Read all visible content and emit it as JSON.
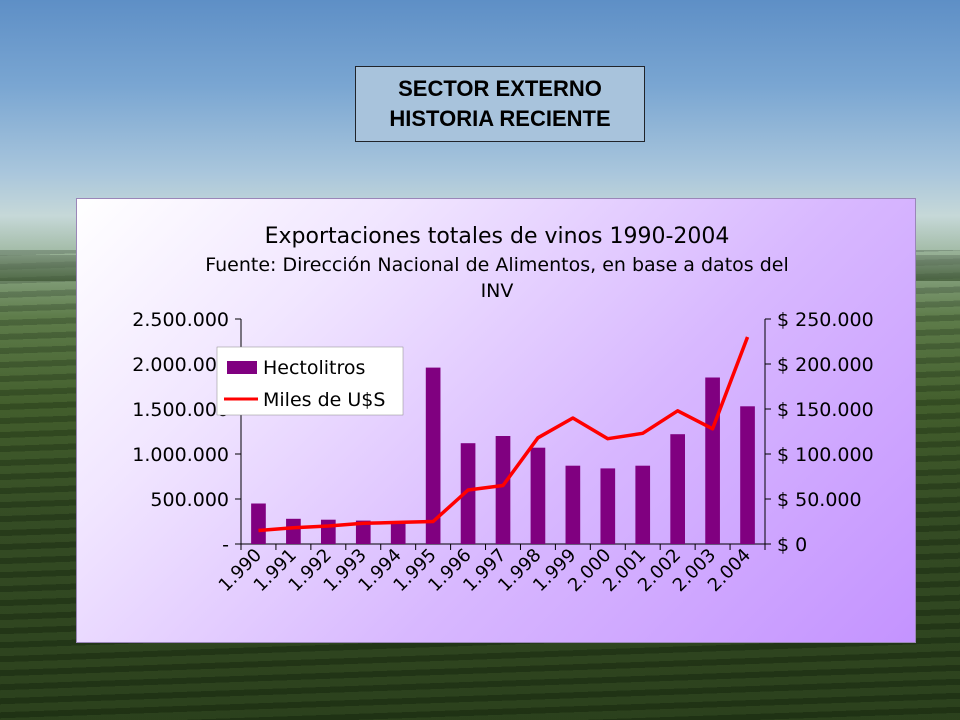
{
  "slide": {
    "title_line1": "SECTOR EXTERNO",
    "title_line2": "HISTORIA RECIENTE"
  },
  "chart_data": {
    "type": "bar",
    "title": "Exportaciones totales de vinos 1990-2004",
    "subtitle_line1": "Fuente: Dirección Nacional de Alimentos, en base a datos del",
    "subtitle_line2": "INV",
    "categories": [
      "1.990",
      "1.991",
      "1.992",
      "1.993",
      "1.994",
      "1.995",
      "1.996",
      "1.997",
      "1.998",
      "1.999",
      "2.000",
      "2.001",
      "2.002",
      "2.003",
      "2.004"
    ],
    "series": [
      {
        "name": "Hectolitros",
        "type": "bar",
        "axis": "left",
        "color": "#800080",
        "values": [
          450000,
          280000,
          270000,
          260000,
          230000,
          1960000,
          1120000,
          1200000,
          1070000,
          870000,
          840000,
          870000,
          1220000,
          1850000,
          1530000
        ]
      },
      {
        "name": "Miles de U$S",
        "type": "line",
        "axis": "right",
        "color": "#ff0000",
        "values": [
          15000,
          18000,
          20000,
          23000,
          24000,
          25000,
          60000,
          65000,
          118000,
          140000,
          117000,
          123000,
          148000,
          128000,
          230000
        ]
      }
    ],
    "y_left": {
      "ylim": [
        0,
        2500000
      ],
      "ticks": [
        "-",
        "500.000",
        "1.000.000",
        "1.500.000",
        "2.000.000",
        "2.500.000"
      ]
    },
    "y_right": {
      "ylim": [
        0,
        250000
      ],
      "ticks": [
        "$ 0",
        "$ 50.000",
        "$ 100.000",
        "$ 150.000",
        "$ 200.000",
        "$ 250.000"
      ]
    },
    "grid": false,
    "legend_position": "top-left"
  }
}
